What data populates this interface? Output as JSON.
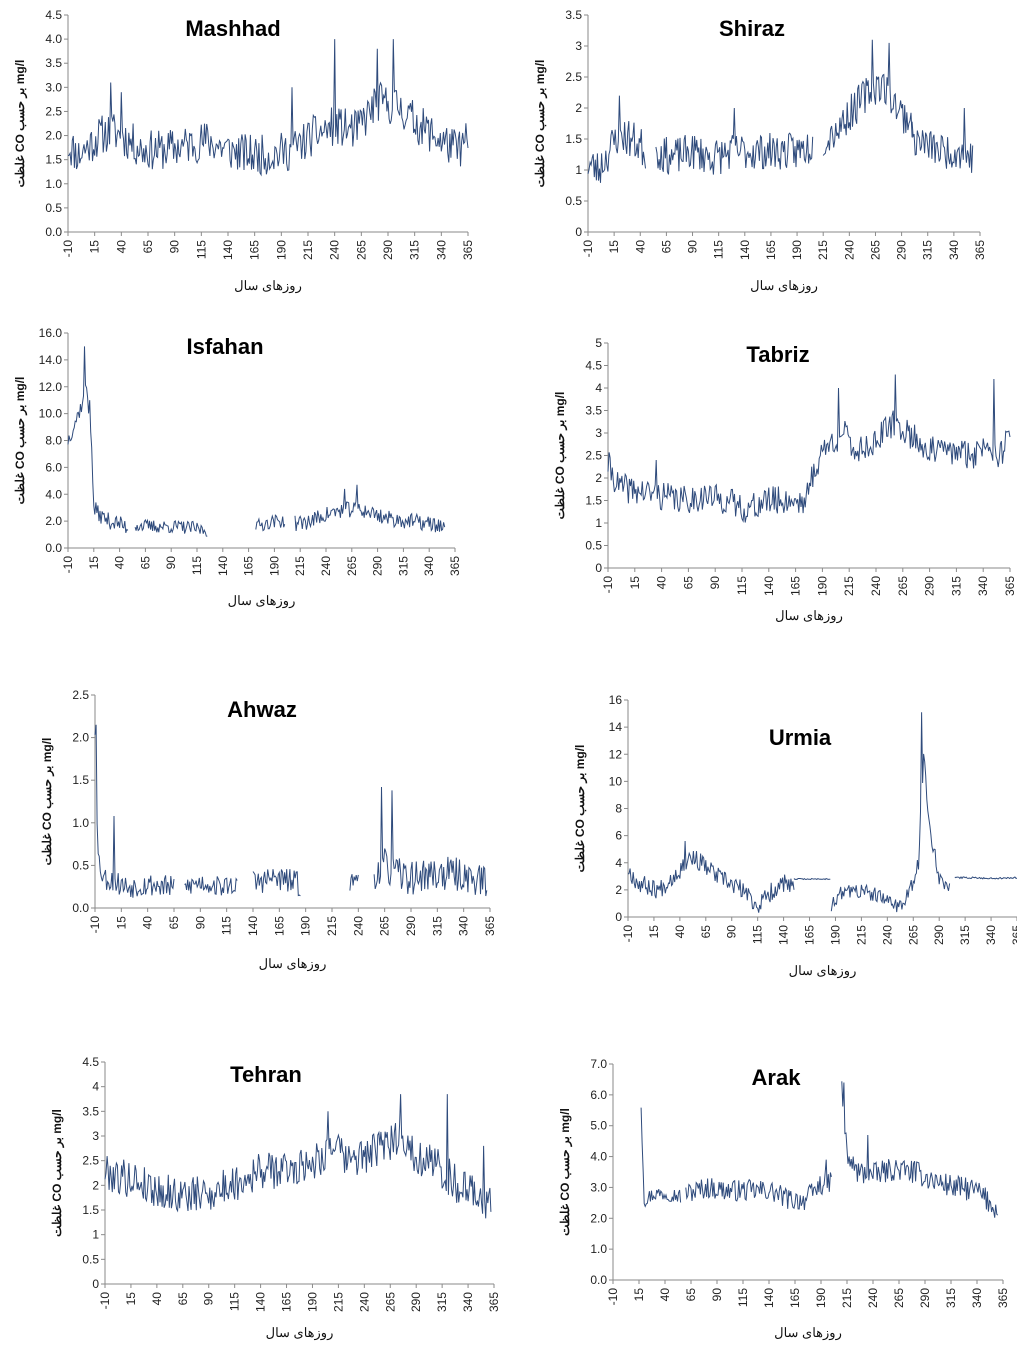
{
  "chart_data": [
    {
      "type": "line",
      "title": "Mashhad",
      "xlabel": "روزهای سال",
      "ylabel": "غلظت CO بر حسب mg/l",
      "xlim": [
        -10,
        365
      ],
      "ylim": [
        0,
        4.5
      ],
      "ystep": 0.5,
      "ydec": 1,
      "seed": 11,
      "xticks": [
        "-10",
        "15",
        "40",
        "65",
        "90",
        "115",
        "140",
        "165",
        "190",
        "215",
        "240",
        "265",
        "290",
        "315",
        "340",
        "365"
      ],
      "y_labels": [
        "0.0",
        "0.5",
        "1.0",
        "1.5",
        "2.0",
        "2.5",
        "3.0",
        "3.5",
        "4.0",
        "4.5"
      ],
      "segments": [
        {
          "x": [
            -10,
            0,
            10,
            20,
            30,
            40,
            60,
            80,
            100,
            120,
            140,
            160,
            180,
            200,
            220,
            240,
            260,
            280,
            300,
            320,
            340,
            355,
            365
          ],
          "y": [
            1.8,
            1.6,
            1.8,
            2.0,
            2.1,
            2.0,
            1.7,
            1.7,
            1.8,
            1.9,
            1.7,
            1.6,
            1.6,
            1.7,
            2.0,
            2.2,
            2.1,
            2.7,
            2.6,
            2.2,
            1.9,
            1.7,
            1.9
          ],
          "noise": 0.42,
          "spikes": [
            [
              30,
              3.1
            ],
            [
              40,
              2.9
            ],
            [
              200,
              3.0
            ],
            [
              240,
              4.0
            ],
            [
              280,
              3.8
            ],
            [
              295,
              4.0
            ]
          ]
        }
      ]
    },
    {
      "type": "line",
      "title": "Shiraz",
      "xlabel": "روزهای سال",
      "ylabel": "غلظت CO بر حسب mg/l",
      "xlim": [
        -10,
        365
      ],
      "ylim": [
        0,
        3.5
      ],
      "ystep": 0.5,
      "ydec": "auto",
      "seed": 23,
      "xticks": [
        "-10",
        "15",
        "40",
        "65",
        "90",
        "115",
        "140",
        "165",
        "190",
        "215",
        "240",
        "265",
        "290",
        "315",
        "340",
        "365"
      ],
      "y_labels": [
        "0",
        "0.5",
        "1",
        "1.5",
        "2",
        "2.5",
        "3",
        "3.5"
      ],
      "segments": [
        {
          "x": [
            -10,
            0,
            10,
            20,
            30,
            40,
            45
          ],
          "y": [
            1.1,
            1.0,
            1.3,
            1.6,
            1.5,
            1.4,
            1.3
          ],
          "noise": 0.32,
          "spikes": [
            [
              20,
              2.2
            ]
          ]
        },
        {
          "x": [
            55,
            70,
            90,
            110,
            130,
            150,
            170,
            190,
            205
          ],
          "y": [
            1.3,
            1.2,
            1.3,
            1.2,
            1.3,
            1.3,
            1.3,
            1.3,
            1.4
          ],
          "noise": 0.3,
          "spikes": [
            [
              130,
              2.0
            ]
          ]
        },
        {
          "x": [
            215,
            230,
            245,
            260,
            270,
            280,
            290,
            300
          ],
          "y": [
            1.5,
            1.7,
            2.0,
            2.3,
            2.4,
            2.2,
            1.9,
            1.8
          ],
          "noise": 0.3,
          "spikes": [
            [
              262,
              3.1
            ],
            [
              278,
              3.05
            ]
          ]
        },
        {
          "x": [
            300,
            315,
            330,
            345,
            358
          ],
          "y": [
            1.5,
            1.4,
            1.3,
            1.3,
            1.2
          ],
          "noise": 0.28,
          "spikes": [
            [
              350,
              2.0
            ]
          ]
        }
      ]
    },
    {
      "type": "line",
      "title": "Isfahan",
      "xlabel": "روزهای سال",
      "ylabel": "غلظت CO بر حسب mg/l",
      "xlim": [
        -10,
        365
      ],
      "ylim": [
        0,
        16
      ],
      "ystep": 2,
      "ydec": 1,
      "seed": 37,
      "xticks": [
        "-10",
        "15",
        "40",
        "65",
        "90",
        "115",
        "140",
        "165",
        "190",
        "215",
        "240",
        "265",
        "290",
        "315",
        "340",
        "365"
      ],
      "y_labels": [
        "0.0",
        "2.0",
        "4.0",
        "6.0",
        "8.0",
        "10.0",
        "12.0",
        "14.0",
        "16.0"
      ],
      "segments": [
        {
          "x": [
            -10,
            -5,
            0,
            5,
            8,
            12,
            15,
            20,
            30,
            40,
            48
          ],
          "y": [
            8,
            9,
            10,
            11,
            12,
            9,
            3,
            2.5,
            2.0,
            1.8,
            1.5
          ],
          "noise": 0.6,
          "spikes": [
            [
              6,
              15.0
            ],
            [
              11,
              11.0
            ]
          ]
        },
        {
          "x": [
            55,
            70,
            90,
            110,
            125
          ],
          "y": [
            1.7,
            1.6,
            1.6,
            1.5,
            1.3
          ],
          "noise": 0.5,
          "spikes": []
        },
        {
          "x": [
            172,
            180,
            190,
            200
          ],
          "y": [
            1.6,
            1.8,
            2.0,
            2.0
          ],
          "noise": 0.5,
          "spikes": []
        },
        {
          "x": [
            210,
            225,
            240,
            255,
            270,
            285,
            300,
            320,
            340,
            355
          ],
          "y": [
            1.8,
            2.0,
            2.5,
            2.8,
            2.9,
            2.6,
            2.2,
            2.0,
            1.8,
            1.6
          ],
          "noise": 0.6,
          "spikes": [
            [
              270,
              4.7
            ],
            [
              258,
              4.4
            ]
          ]
        }
      ]
    },
    {
      "type": "line",
      "title": "Tabriz",
      "xlabel": "روزهای سال",
      "ylabel": "غلظت CO بر حسب mg/l",
      "xlim": [
        -10,
        365
      ],
      "ylim": [
        0,
        5
      ],
      "ystep": 0.5,
      "ydec": "auto",
      "seed": 41,
      "xticks": [
        "-10",
        "15",
        "40",
        "65",
        "90",
        "115",
        "140",
        "165",
        "190",
        "215",
        "240",
        "265",
        "290",
        "315",
        "340",
        "365"
      ],
      "y_labels": [
        "0",
        "0.5",
        "1",
        "1.5",
        "2",
        "2.5",
        "3",
        "3.5",
        "4",
        "4.5",
        "5"
      ],
      "segments": [
        {
          "x": [
            -10,
            0,
            20,
            40,
            60,
            80,
            100,
            120,
            140,
            160,
            175,
            180,
            190,
            200,
            210,
            220,
            240,
            255,
            270,
            290,
            310,
            330,
            345,
            355,
            365
          ],
          "y": [
            2.3,
            1.8,
            1.7,
            1.6,
            1.5,
            1.6,
            1.5,
            1.3,
            1.5,
            1.5,
            1.5,
            2.0,
            2.6,
            2.8,
            3.0,
            2.6,
            2.8,
            3.2,
            3.0,
            2.6,
            2.6,
            2.5,
            2.8,
            2.5,
            2.9
          ],
          "noise": 0.32,
          "spikes": [
            [
              35,
              2.4
            ],
            [
              205,
              4.0
            ],
            [
              258,
              4.3
            ],
            [
              350,
              4.2
            ]
          ]
        }
      ]
    },
    {
      "type": "line",
      "title": "Ahwaz",
      "xlabel": "روزهای سال",
      "ylabel": "غلظت CO بر حسب mg/l",
      "xlim": [
        -10,
        365
      ],
      "ylim": [
        0,
        2.5
      ],
      "ystep": 0.5,
      "ydec": 1,
      "seed": 53,
      "xticks": [
        "-10",
        "15",
        "40",
        "65",
        "90",
        "115",
        "140",
        "165",
        "190",
        "215",
        "240",
        "265",
        "290",
        "315",
        "340",
        "365"
      ],
      "y_labels": [
        "0.0",
        "0.5",
        "1.0",
        "1.5",
        "2.0",
        "2.5"
      ],
      "segments": [
        {
          "x": [
            -10,
            -7,
            -3,
            0,
            10,
            20,
            40,
            60,
            65
          ],
          "y": [
            2.1,
            0.6,
            0.4,
            0.35,
            0.3,
            0.25,
            0.28,
            0.25,
            0.22
          ],
          "noise": 0.14,
          "spikes": [
            [
              -9,
              2.15
            ],
            [
              8,
              1.08
            ]
          ]
        },
        {
          "x": [
            75,
            90,
            110,
            125
          ],
          "y": [
            0.25,
            0.3,
            0.25,
            0.28
          ],
          "noise": 0.12,
          "spikes": []
        },
        {
          "x": [
            140,
            160,
            180,
            185
          ],
          "y": [
            0.3,
            0.35,
            0.3,
            0.25
          ],
          "noise": 0.15,
          "spikes": []
        },
        {
          "x": [
            232,
            240
          ],
          "y": [
            0.3,
            0.35
          ],
          "noise": 0.1,
          "spikes": []
        },
        {
          "x": [
            255,
            265,
            275,
            290,
            310,
            330,
            350,
            362
          ],
          "y": [
            0.4,
            0.5,
            0.4,
            0.35,
            0.4,
            0.4,
            0.35,
            0.3
          ],
          "noise": 0.2,
          "spikes": [
            [
              262,
              1.42
            ],
            [
              272,
              1.38
            ]
          ]
        }
      ]
    },
    {
      "type": "line",
      "title": "Urmia",
      "xlabel": "روزهای سال",
      "ylabel": "غلظت CO بر حسب mg/l",
      "xlim": [
        -10,
        365
      ],
      "ylim": [
        0,
        16
      ],
      "ystep": 2,
      "ydec": "auto",
      "seed": 67,
      "xticks": [
        "-10",
        "15",
        "40",
        "65",
        "90",
        "115",
        "140",
        "165",
        "190",
        "215",
        "240",
        "265",
        "290",
        "315",
        "340",
        "365"
      ],
      "y_labels": [
        "0",
        "2",
        "4",
        "6",
        "8",
        "10",
        "12",
        "14",
        "16"
      ],
      "segments": [
        {
          "x": [
            -10,
            0,
            20,
            40,
            50,
            60,
            80,
            100,
            115,
            130,
            140,
            150
          ],
          "y": [
            3.5,
            2.5,
            2.0,
            3.5,
            4.5,
            4.0,
            2.8,
            2.0,
            0.8,
            2.0,
            2.5,
            2.0
          ],
          "noise": 0.7,
          "spikes": [
            [
              45,
              5.6
            ]
          ]
        },
        {
          "x": [
            150,
            160,
            170,
            180,
            185
          ],
          "y": [
            2.8,
            2.8,
            2.8,
            2.8,
            2.8
          ],
          "noise": 0.04,
          "spikes": []
        },
        {
          "x": [
            186,
            200,
            220,
            240,
            255,
            265,
            270,
            275,
            280,
            290,
            300
          ],
          "y": [
            1.0,
            2.0,
            1.8,
            1.2,
            0.8,
            2.5,
            4.0,
            12.0,
            7.0,
            3.0,
            2.0
          ],
          "noise": 0.6,
          "spikes": [
            [
              273,
              15.1
            ]
          ]
        },
        {
          "x": [
            305,
            320,
            340,
            365
          ],
          "y": [
            2.9,
            2.9,
            2.85,
            2.9
          ],
          "noise": 0.06,
          "spikes": []
        }
      ]
    },
    {
      "type": "line",
      "title": "Tehran",
      "xlabel": "روزهای سال",
      "ylabel": "غلظت CO بر حسب mg/l",
      "xlim": [
        -10,
        365
      ],
      "ylim": [
        0,
        4.5
      ],
      "ystep": 0.5,
      "ydec": "auto",
      "seed": 79,
      "xticks": [
        "-10",
        "15",
        "40",
        "65",
        "90",
        "115",
        "140",
        "165",
        "190",
        "215",
        "240",
        "265",
        "290",
        "315",
        "340",
        "365"
      ],
      "y_labels": [
        "0",
        "0.5",
        "1",
        "1.5",
        "2",
        "2.5",
        "3",
        "3.5",
        "4",
        "4.5"
      ],
      "segments": [
        {
          "x": [
            -10,
            0,
            20,
            40,
            60,
            80,
            100,
            120,
            140,
            160,
            180,
            200,
            210,
            220,
            240,
            260,
            275,
            290,
            310,
            330,
            350,
            362
          ],
          "y": [
            2.3,
            2.2,
            2.1,
            1.9,
            1.8,
            1.8,
            1.9,
            2.1,
            2.3,
            2.3,
            2.4,
            2.6,
            2.9,
            2.5,
            2.6,
            2.8,
            3.0,
            2.6,
            2.4,
            2.0,
            1.8,
            1.6
          ],
          "noise": 0.38,
          "spikes": [
            [
              205,
              3.5
            ],
            [
              275,
              3.85
            ],
            [
              320,
              3.85
            ],
            [
              355,
              2.8
            ]
          ]
        }
      ]
    },
    {
      "type": "line",
      "title": "Arak",
      "xlabel": "روزهای سال",
      "ylabel": "غلظت CO بر حسب mg/l",
      "xlim": [
        -10,
        365
      ],
      "ylim": [
        0,
        7
      ],
      "ystep": 1,
      "ydec": 1,
      "seed": 97,
      "xticks": [
        "-10",
        "15",
        "40",
        "65",
        "90",
        "115",
        "140",
        "165",
        "190",
        "215",
        "240",
        "265",
        "290",
        "315",
        "340",
        "365"
      ],
      "y_labels": [
        "0.0",
        "1.0",
        "2.0",
        "3.0",
        "4.0",
        "5.0",
        "6.0",
        "7.0"
      ],
      "segments": [
        {
          "x": [
            17,
            20,
            30,
            45,
            55
          ],
          "y": [
            5.7,
            2.6,
            2.8,
            2.8,
            2.7
          ],
          "noise": 0.25,
          "spikes": []
        },
        {
          "x": [
            60,
            80,
            100,
            120,
            140,
            160,
            175,
            190,
            200
          ],
          "y": [
            2.8,
            3.0,
            2.9,
            2.9,
            2.9,
            2.6,
            2.6,
            3.1,
            3.2
          ],
          "noise": 0.35,
          "spikes": [
            [
              195,
              3.9
            ]
          ]
        },
        {
          "x": [
            210,
            215,
            225,
            240,
            260,
            280,
            300,
            320,
            340,
            355,
            360
          ],
          "y": [
            6.3,
            4.0,
            3.5,
            3.4,
            3.6,
            3.5,
            3.2,
            3.0,
            2.9,
            2.4,
            2.3
          ],
          "noise": 0.38,
          "spikes": [
            [
              212,
              6.4
            ],
            [
              235,
              4.7
            ]
          ]
        }
      ]
    }
  ]
}
